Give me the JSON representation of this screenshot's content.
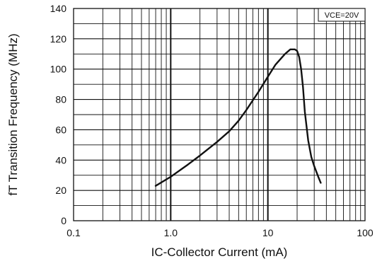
{
  "chart_data": {
    "type": "line",
    "xlabel": "IC-Collector Current  (mA)",
    "ylabel": "fT Transition Frequency (MHz)",
    "x_scale": "log",
    "xlim": [
      0.1,
      100
    ],
    "ylim": [
      0,
      140
    ],
    "x_ticks": [
      "0.1",
      "1.0",
      "10",
      "100"
    ],
    "y_ticks": [
      "0",
      "20",
      "40",
      "60",
      "80",
      "100",
      "120",
      "140"
    ],
    "grid": true,
    "legend_position": "top-right",
    "annotation": "VCE=20V",
    "series": [
      {
        "x": [
          0.7,
          1.0,
          1.5,
          2.0,
          3.0,
          4.0,
          5.0,
          6.0,
          8.0,
          10.0,
          12.0,
          15.0,
          17.0,
          19.0,
          20.0,
          21.0,
          22.0,
          23.0,
          24.0,
          26.0,
          28.0,
          30.0,
          33.0,
          35.0
        ],
        "y": [
          23,
          29,
          37,
          43,
          52,
          59,
          66,
          73,
          85,
          95,
          103,
          110,
          113,
          113,
          112,
          108,
          100,
          88,
          72,
          53,
          42,
          36,
          29,
          25
        ]
      }
    ]
  }
}
